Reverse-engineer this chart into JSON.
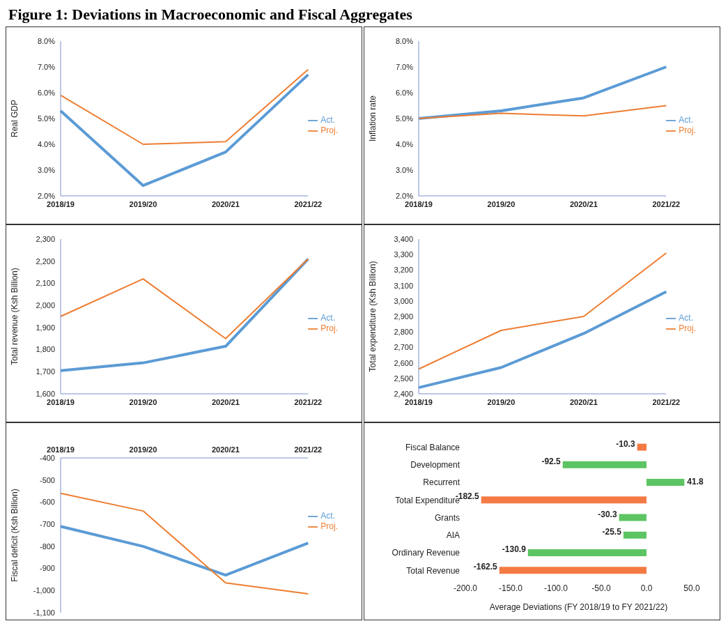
{
  "chart_data": [
    {
      "type": "line",
      "title": "Figure 1: Deviations in Macroeconomic and Fiscal Aggregates",
      "categories": [
        "2018/19",
        "2019/20",
        "2020/21",
        "2021/22"
      ],
      "ylabel": "Real GDP",
      "ylim": [
        2,
        8
      ],
      "yticks": [
        {
          "value": 2,
          "label": "2.0%"
        },
        {
          "value": 3,
          "label": "3.0%"
        },
        {
          "value": 4,
          "label": "4.0%"
        },
        {
          "value": 5,
          "label": "5.0%"
        },
        {
          "value": 6,
          "label": "6.0%"
        },
        {
          "value": 7,
          "label": "7.0%"
        },
        {
          "value": 8,
          "label": "8.0%"
        }
      ],
      "legend": "right",
      "series": [
        {
          "name": "Act.",
          "color": "#5b9bd5",
          "values": [
            5.3,
            2.4,
            3.7,
            6.7
          ]
        },
        {
          "name": "Proj.",
          "color": "#ed7d31",
          "values": [
            5.9,
            4.0,
            4.1,
            6.9
          ]
        }
      ]
    },
    {
      "type": "line",
      "categories": [
        "2018/19",
        "2019/20",
        "2020/21",
        "2021/22"
      ],
      "ylabel": "Inflation rate",
      "ylim": [
        2,
        8
      ],
      "yticks": [
        {
          "value": 2,
          "label": "2.0%"
        },
        {
          "value": 3,
          "label": "3.0%"
        },
        {
          "value": 4,
          "label": "4.0%"
        },
        {
          "value": 5,
          "label": "5.0%"
        },
        {
          "value": 6,
          "label": "6.0%"
        },
        {
          "value": 7,
          "label": "7.0%"
        },
        {
          "value": 8,
          "label": "8.0%"
        }
      ],
      "legend": "right",
      "series": [
        {
          "name": "Act.",
          "color": "#5b9bd5",
          "values": [
            5.0,
            5.3,
            5.8,
            7.0
          ]
        },
        {
          "name": "Proj.",
          "color": "#ed7d31",
          "values": [
            5.0,
            5.2,
            5.1,
            5.5
          ]
        }
      ]
    },
    {
      "type": "line",
      "categories": [
        "2018/19",
        "2019/20",
        "2020/21",
        "2021/22"
      ],
      "ylabel": "Total revenue  (Ksh Billion)",
      "ylim": [
        1600,
        2300
      ],
      "yticks": [
        {
          "value": 1600,
          "label": "1,600"
        },
        {
          "value": 1700,
          "label": "1,700"
        },
        {
          "value": 1800,
          "label": "1,800"
        },
        {
          "value": 1900,
          "label": "1,900"
        },
        {
          "value": 2000,
          "label": "2,000"
        },
        {
          "value": 2100,
          "label": "2,100"
        },
        {
          "value": 2200,
          "label": "2,200"
        },
        {
          "value": 2300,
          "label": "2,300"
        }
      ],
      "legend": "right",
      "series": [
        {
          "name": "Act.",
          "color": "#5b9bd5",
          "values": [
            1705,
            1740,
            1815,
            2210
          ]
        },
        {
          "name": "Proj.",
          "color": "#ed7d31",
          "values": [
            1950,
            2120,
            1850,
            2210
          ]
        }
      ]
    },
    {
      "type": "line",
      "categories": [
        "2018/19",
        "2019/20",
        "2020/21",
        "2021/22"
      ],
      "ylabel": "Total expenditure  (Ksh Billion)",
      "ylim": [
        2400,
        3400
      ],
      "yticks": [
        {
          "value": 2400,
          "label": "2,400"
        },
        {
          "value": 2500,
          "label": "2,500"
        },
        {
          "value": 2600,
          "label": "2,600"
        },
        {
          "value": 2700,
          "label": "2,700"
        },
        {
          "value": 2800,
          "label": "2,800"
        },
        {
          "value": 2900,
          "label": "2,900"
        },
        {
          "value": 3000,
          "label": "3,000"
        },
        {
          "value": 3100,
          "label": "3,100"
        },
        {
          "value": 3200,
          "label": "3,200"
        },
        {
          "value": 3300,
          "label": "3,300"
        },
        {
          "value": 3400,
          "label": "3,400"
        }
      ],
      "legend": "right",
      "series": [
        {
          "name": "Act.",
          "color": "#5b9bd5",
          "values": [
            2440,
            2570,
            2790,
            3060
          ]
        },
        {
          "name": "Proj.",
          "color": "#ed7d31",
          "values": [
            2560,
            2810,
            2900,
            3310
          ]
        }
      ]
    },
    {
      "type": "line",
      "categories": [
        "2018/19",
        "2019/20",
        "2020/21",
        "2021/22"
      ],
      "ylabel": "Fiscal deficit  (Ksh Billion)",
      "ylim": [
        -1100,
        -400
      ],
      "yticks": [
        {
          "value": -1100,
          "label": "-1,100"
        },
        {
          "value": -1000,
          "label": "-1,000"
        },
        -900,
        -800,
        -700,
        -600,
        -500,
        -400
      ],
      "legend": "right",
      "series": [
        {
          "name": "Act.",
          "color": "#5b9bd5",
          "values": [
            -710,
            -800,
            -930,
            -785
          ]
        },
        {
          "name": "Proj.",
          "color": "#ed7d31",
          "values": [
            -560,
            -640,
            -965,
            -1015
          ]
        }
      ]
    },
    {
      "type": "bar",
      "orientation": "horizontal",
      "categories": [
        "Fiscal Balance",
        "Development",
        "Recurrent",
        "Total Expenditure",
        "Grants",
        "AIA",
        "Ordinary Revenue",
        "Total Revenue"
      ],
      "values": [
        -10.3,
        -92.5,
        41.8,
        -182.5,
        -30.3,
        -25.5,
        -130.9,
        -162.5
      ],
      "colors": [
        "#f47a45",
        "#5cc463",
        "#5cc463",
        "#f47a45",
        "#5cc463",
        "#5cc463",
        "#5cc463",
        "#f47a45"
      ],
      "data_labels": true,
      "xlabel": "Average Deviations  (FY 2018/19 to FY 2021/22)",
      "xlim": [
        -200,
        50
      ],
      "xticks": [
        {
          "value": -200,
          "label": "-200.0"
        },
        {
          "value": -150,
          "label": "-150.0"
        },
        {
          "value": -100,
          "label": "-100.0"
        },
        {
          "value": -50,
          "label": "-50.0"
        },
        {
          "value": 0,
          "label": "0.0"
        },
        {
          "value": 50,
          "label": "50.0"
        }
      ]
    }
  ]
}
